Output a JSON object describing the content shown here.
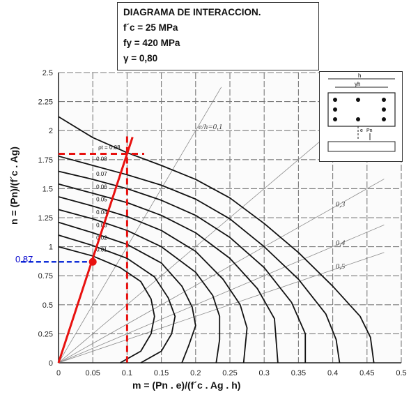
{
  "chart_data": {
    "type": "line",
    "title_lines": [
      "DIAGRAMA DE INTERACCION.",
      "f´c = 25 MPa",
      "fy = 420 MPa",
      "γ = 0,80"
    ],
    "xlabel": "m = (Pn . e)/(f´c . Ag . h)",
    "ylabel": "n = (Pn)/(f´c . Ag)",
    "xlim": [
      0,
      0.5
    ],
    "ylim": [
      0,
      2.5
    ],
    "x_ticks": [
      "0",
      "0.05",
      "0.1",
      "0.15",
      "0.2",
      "0.25",
      "0.3",
      "0.35",
      "0.4",
      "0.45",
      "0.5"
    ],
    "y_ticks": [
      "0",
      "0.25",
      "0.5",
      "0.75",
      "1",
      "1.25",
      "1.5",
      "1.75",
      "2",
      "2.25",
      "2.5"
    ],
    "grid": true,
    "curves": [
      {
        "label": "0.01",
        "points": [
          [
            0,
            1.0
          ],
          [
            0.05,
            0.92
          ],
          [
            0.09,
            0.82
          ],
          [
            0.12,
            0.7
          ],
          [
            0.135,
            0.55
          ],
          [
            0.14,
            0.4
          ],
          [
            0.135,
            0.25
          ],
          [
            0.12,
            0.1
          ],
          [
            0.09,
            0.0
          ]
        ]
      },
      {
        "label": "0.02",
        "points": [
          [
            0,
            1.1
          ],
          [
            0.05,
            1.01
          ],
          [
            0.1,
            0.9
          ],
          [
            0.14,
            0.74
          ],
          [
            0.16,
            0.56
          ],
          [
            0.17,
            0.4
          ],
          [
            0.165,
            0.25
          ],
          [
            0.15,
            0.1
          ],
          [
            0.12,
            0.0
          ]
        ]
      },
      {
        "label": "0.03",
        "points": [
          [
            0,
            1.21
          ],
          [
            0.05,
            1.12
          ],
          [
            0.1,
            1.02
          ],
          [
            0.15,
            0.86
          ],
          [
            0.18,
            0.66
          ],
          [
            0.195,
            0.48
          ],
          [
            0.2,
            0.32
          ],
          [
            0.19,
            0.15
          ],
          [
            0.18,
            0.0
          ]
        ]
      },
      {
        "label": "0.04",
        "points": [
          [
            0,
            1.32
          ],
          [
            0.05,
            1.24
          ],
          [
            0.1,
            1.14
          ],
          [
            0.15,
            1.0
          ],
          [
            0.2,
            0.78
          ],
          [
            0.225,
            0.58
          ],
          [
            0.235,
            0.4
          ],
          [
            0.235,
            0.2
          ],
          [
            0.23,
            0.0
          ]
        ]
      },
      {
        "label": "0.05",
        "points": [
          [
            0,
            1.43
          ],
          [
            0.05,
            1.35
          ],
          [
            0.1,
            1.26
          ],
          [
            0.15,
            1.14
          ],
          [
            0.2,
            0.96
          ],
          [
            0.24,
            0.72
          ],
          [
            0.265,
            0.5
          ],
          [
            0.275,
            0.3
          ],
          [
            0.27,
            0.0
          ]
        ]
      },
      {
        "label": "0.06",
        "points": [
          [
            0,
            1.54
          ],
          [
            0.05,
            1.46
          ],
          [
            0.1,
            1.38
          ],
          [
            0.15,
            1.27
          ],
          [
            0.2,
            1.12
          ],
          [
            0.25,
            0.9
          ],
          [
            0.29,
            0.64
          ],
          [
            0.315,
            0.38
          ],
          [
            0.32,
            0.0
          ]
        ]
      },
      {
        "label": "0.07",
        "points": [
          [
            0,
            1.65
          ],
          [
            0.05,
            1.58
          ],
          [
            0.1,
            1.5
          ],
          [
            0.15,
            1.4
          ],
          [
            0.2,
            1.27
          ],
          [
            0.25,
            1.08
          ],
          [
            0.3,
            0.82
          ],
          [
            0.34,
            0.52
          ],
          [
            0.36,
            0.25
          ],
          [
            0.36,
            0.0
          ]
        ]
      },
      {
        "label": "0.08",
        "points": [
          [
            0,
            1.78
          ],
          [
            0.05,
            1.7
          ],
          [
            0.1,
            1.62
          ],
          [
            0.15,
            1.53
          ],
          [
            0.2,
            1.41
          ],
          [
            0.25,
            1.24
          ],
          [
            0.3,
            1.0
          ],
          [
            0.35,
            0.72
          ],
          [
            0.39,
            0.42
          ],
          [
            0.405,
            0.2
          ],
          [
            0.41,
            0.0
          ]
        ]
      },
      {
        "label": "",
        "points": [
          [
            0,
            2.12
          ],
          [
            0.05,
            1.94
          ],
          [
            0.1,
            1.81
          ],
          [
            0.15,
            1.7
          ],
          [
            0.2,
            1.58
          ],
          [
            0.25,
            1.42
          ],
          [
            0.3,
            1.2
          ],
          [
            0.35,
            0.95
          ],
          [
            0.4,
            0.66
          ],
          [
            0.44,
            0.4
          ],
          [
            0.455,
            0.22
          ],
          [
            0.46,
            0.0
          ]
        ]
      }
    ],
    "eccentricity_rays": [
      {
        "label": "e/h=0,1",
        "slope": 10.0
      },
      {
        "label": "0,2",
        "slope": 5.0
      },
      {
        "label": "0,3",
        "slope": 3.333
      },
      {
        "label": "0,4",
        "slope": 2.5
      },
      {
        "label": "0,5",
        "slope": 2.0
      }
    ],
    "rho_label": "ρt = 0.08",
    "overlays": {
      "red_line_through": [
        [
          0,
          0
        ],
        [
          0.05,
          0.87
        ],
        [
          0.1,
          1.8
        ]
      ],
      "red_dashed_h": 1.8,
      "red_dashed_v": 0.1,
      "blue_dashed_h": 0.87,
      "point": [
        0.05,
        0.87
      ],
      "point_label": "0.87"
    },
    "section_labels": [
      "h",
      "γh",
      "e",
      "Pn"
    ],
    "colors": {
      "curve": "#111111",
      "grid": "#7a7a7a",
      "red": "#e8110f",
      "blue": "#1230d8"
    }
  }
}
